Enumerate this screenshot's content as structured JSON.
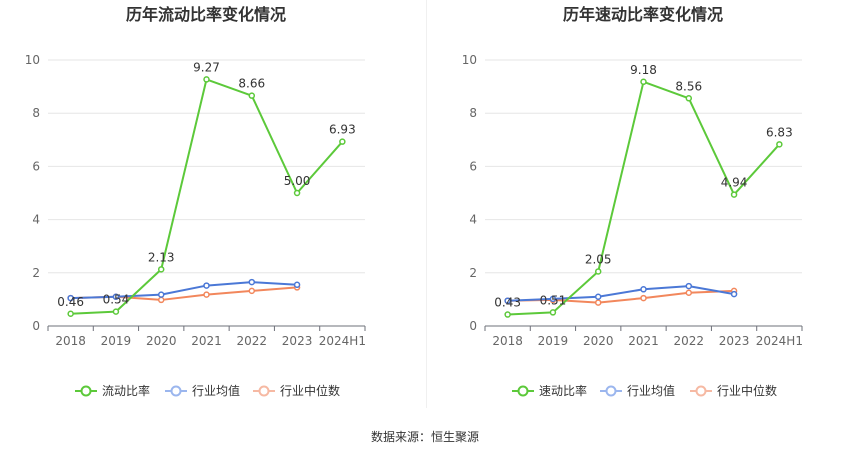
{
  "footer": {
    "source_text": "数据来源：恒生聚源"
  },
  "colors": {
    "primary": "#5cc93a",
    "avg": "#4b78d6",
    "median": "#f2875c",
    "legend_avg": "#9bb6ee",
    "legend_median": "#f6b9a3",
    "grid": "#e6e6e6",
    "axis_text": "#666666"
  },
  "chart_data": [
    {
      "type": "line",
      "title": "历年流动比率变化情况",
      "categories": [
        "2018",
        "2019",
        "2020",
        "2021",
        "2022",
        "2023",
        "2024H1"
      ],
      "ylim": [
        0,
        10
      ],
      "yticks": [
        0,
        2,
        4,
        6,
        8,
        10
      ],
      "grid": true,
      "legend_position": "bottom",
      "series": [
        {
          "name": "流动比率",
          "values": [
            0.46,
            0.54,
            2.13,
            9.27,
            8.66,
            5.0,
            6.93
          ],
          "labels": [
            "0.46",
            "0.54",
            "2.13",
            "9.27",
            "8.66",
            "5.00",
            "6.93"
          ]
        },
        {
          "name": "行业均值",
          "values": [
            1.05,
            1.1,
            1.18,
            1.52,
            1.65,
            1.55,
            null
          ]
        },
        {
          "name": "行业中位数",
          "values": [
            1.05,
            1.1,
            0.98,
            1.18,
            1.32,
            1.45,
            null
          ]
        }
      ]
    },
    {
      "type": "line",
      "title": "历年速动比率变化情况",
      "categories": [
        "2018",
        "2019",
        "2020",
        "2021",
        "2022",
        "2023",
        "2024H1"
      ],
      "ylim": [
        0,
        10
      ],
      "yticks": [
        0,
        2,
        4,
        6,
        8,
        10
      ],
      "grid": true,
      "legend_position": "bottom",
      "series": [
        {
          "name": "速动比率",
          "values": [
            0.43,
            0.51,
            2.05,
            9.18,
            8.56,
            4.94,
            6.83
          ],
          "labels": [
            "0.43",
            "0.51",
            "2.05",
            "9.18",
            "8.56",
            "4.94",
            "6.83"
          ]
        },
        {
          "name": "行业均值",
          "values": [
            0.95,
            1.02,
            1.1,
            1.38,
            1.5,
            1.2,
            null
          ]
        },
        {
          "name": "行业中位数",
          "values": [
            0.95,
            0.98,
            0.88,
            1.05,
            1.25,
            1.32,
            null
          ]
        }
      ]
    }
  ]
}
